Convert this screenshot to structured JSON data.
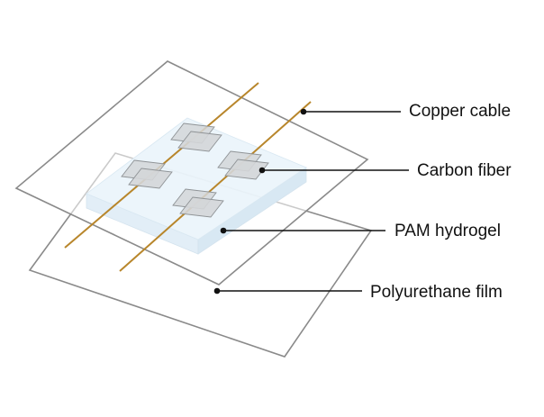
{
  "labels": {
    "copper_cable": "Copper cable",
    "carbon_fiber": "Carbon fiber",
    "pam_hydrogel": "PAM hydrogel",
    "polyurethane_film": "Polyurethane film"
  },
  "colors": {
    "film_edge": "#8a8a8a",
    "film_fill": "#ffffff",
    "hydrogel_top": "#eaf4fb",
    "hydrogel_side": "#dcebf5",
    "carbon_fiber_fill": "#d4d6d8",
    "carbon_fiber_stroke": "#8f9396",
    "copper": "#b8862b",
    "leader": "#111111"
  }
}
